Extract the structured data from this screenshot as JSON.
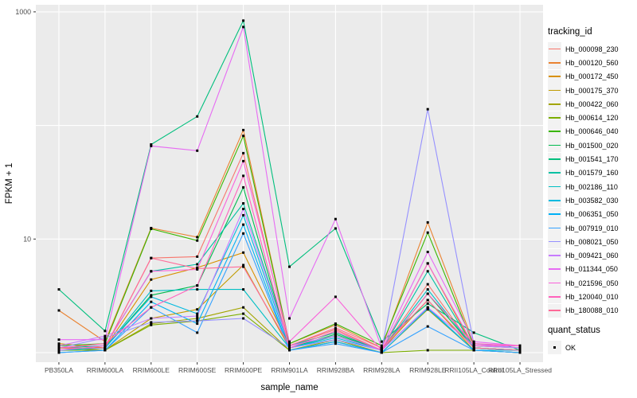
{
  "figure": {
    "y_axis": {
      "label": "FPKM + 1",
      "tick_labels": [
        "1000",
        "10"
      ]
    },
    "x_axis": {
      "label": "sample_name"
    },
    "legend": {
      "tracking_title": "tracking_id",
      "quant_title": "quant_status",
      "quant_items": [
        {
          "label": "OK",
          "symbol": "black-square-point"
        }
      ]
    },
    "colors": {
      "panel_background": "#EBEBEB",
      "gridline": "#FFFFFF",
      "tick_text": "#4D4D4D",
      "point": "#000000",
      "legend_key_background": "#F2F2F2"
    }
  },
  "chart_data": {
    "type": "line",
    "title": "",
    "xlabel": "sample_name",
    "ylabel": "FPKM + 1",
    "y_scale": "log10",
    "ylim": [
      1,
      1000
    ],
    "y_gridlines": [
      1,
      10,
      100,
      1000
    ],
    "y_labeled_breaks": [
      1000,
      10
    ],
    "grid": true,
    "legend_position": "right",
    "point_shape": "square",
    "categories": [
      "PB350LA",
      "RRIM600LA",
      "RRIM600LE",
      "RRIM600SE",
      "RRIM600PE",
      "RRIM901LA",
      "RRIM928BA",
      "RRIM928LA",
      "RRIM928LE",
      "RRII105LA_Control",
      "RRII105LA_Stressed"
    ],
    "series": [
      {
        "name": "Hb_000098_230",
        "color": "#F8766D",
        "values": [
          1.1,
          1.1,
          6.8,
          7.0,
          57,
          1.15,
          1.6,
          1.05,
          4.0,
          1.1,
          1.05
        ]
      },
      {
        "name": "Hb_000120_560",
        "color": "#EA8331",
        "values": [
          2.35,
          1.25,
          12.5,
          10.4,
          91,
          1.2,
          1.75,
          1.1,
          14.0,
          1.2,
          1.1
        ]
      },
      {
        "name": "Hb_000172_450",
        "color": "#D89000",
        "values": [
          1.2,
          1.1,
          4.4,
          5.6,
          7.6,
          1.15,
          1.5,
          1.05,
          6.1,
          1.1,
          1.05
        ]
      },
      {
        "name": "Hb_000175_370",
        "color": "#C09B00",
        "values": [
          1.1,
          1.05,
          2.0,
          2.4,
          5.9,
          1.1,
          1.4,
          1.05,
          2.9,
          1.05,
          1.05
        ]
      },
      {
        "name": "Hb_000422_060",
        "color": "#A3A500",
        "values": [
          1.05,
          1.05,
          1.8,
          2.0,
          2.5,
          1.05,
          1.3,
          1.0,
          2.4,
          1.05,
          1.0
        ]
      },
      {
        "name": "Hb_000614_120",
        "color": "#7CAE00",
        "values": [
          1.05,
          1.05,
          1.75,
          1.9,
          2.2,
          1.05,
          1.25,
          1.0,
          1.05,
          1.05,
          1.0
        ]
      },
      {
        "name": "Hb_000646_040",
        "color": "#39B600",
        "values": [
          1.15,
          1.2,
          12.3,
          9.7,
          81,
          1.2,
          1.8,
          1.15,
          11.4,
          1.15,
          1.1
        ]
      },
      {
        "name": "Hb_001500_020",
        "color": "#00BB4E",
        "values": [
          1.1,
          1.1,
          3.2,
          3.9,
          28.5,
          1.1,
          1.45,
          1.05,
          3.3,
          1.1,
          1.05
        ]
      },
      {
        "name": "Hb_001541_170",
        "color": "#00BF7D",
        "values": [
          3.6,
          1.55,
          68,
          120,
          838,
          5.7,
          12.4,
          1.25,
          2.7,
          1.5,
          1.05
        ]
      },
      {
        "name": "Hb_001579_160",
        "color": "#00C1A3",
        "values": [
          1.1,
          1.15,
          5.2,
          6.0,
          20.6,
          1.15,
          1.5,
          1.05,
          5.2,
          1.1,
          1.05
        ]
      },
      {
        "name": "Hb_002186_110",
        "color": "#00BFC4",
        "values": [
          1.05,
          1.1,
          3.5,
          3.6,
          3.6,
          1.1,
          1.4,
          1.05,
          3.6,
          1.1,
          1.05
        ]
      },
      {
        "name": "Hb_003582_030",
        "color": "#00BAE0",
        "values": [
          1.05,
          1.1,
          3.1,
          2.2,
          16.2,
          1.1,
          1.35,
          1.05,
          2.5,
          1.05,
          1.05
        ]
      },
      {
        "name": "Hb_006351_050",
        "color": "#00B0F6",
        "values": [
          1.0,
          1.05,
          2.8,
          1.8,
          13.4,
          1.05,
          1.25,
          1.0,
          2.45,
          1.05,
          1.0
        ]
      },
      {
        "name": "Hb_007919_010",
        "color": "#35A2FF",
        "values": [
          1.0,
          1.05,
          2.5,
          1.5,
          11.2,
          1.05,
          1.2,
          1.0,
          1.7,
          1.05,
          1.0
        ]
      },
      {
        "name": "Hb_008021_050",
        "color": "#9590FF",
        "values": [
          1.1,
          1.35,
          1.85,
          1.9,
          2.0,
          1.1,
          1.3,
          1.05,
          139,
          1.2,
          1.1
        ]
      },
      {
        "name": "Hb_009421_060",
        "color": "#C77CFF",
        "values": [
          1.15,
          1.4,
          2.0,
          2.1,
          18.4,
          1.15,
          1.4,
          1.05,
          2.5,
          1.15,
          1.1
        ]
      },
      {
        "name": "Hb_011344_050",
        "color": "#E76BF3",
        "values": [
          1.3,
          1.3,
          66,
          60,
          736,
          2.0,
          15.0,
          1.1,
          7.7,
          1.25,
          1.15
        ]
      },
      {
        "name": "Hb_021596_050",
        "color": "#FA62DB",
        "values": [
          1.05,
          1.15,
          5.2,
          5.4,
          48.5,
          1.25,
          3.1,
          1.05,
          6.1,
          1.15,
          1.15
        ]
      },
      {
        "name": "Hb_120040_010",
        "color": "#FF62BC",
        "values": [
          1.1,
          1.2,
          2.5,
          3.9,
          36,
          1.1,
          1.55,
          1.05,
          3.3,
          1.2,
          1.15
        ]
      },
      {
        "name": "Hb_180088_010",
        "color": "#FF6A98",
        "values": [
          1.1,
          1.1,
          6.8,
          5.5,
          5.7,
          1.15,
          1.65,
          1.1,
          2.9,
          1.1,
          1.05
        ]
      }
    ],
    "quant_status_all_points": "OK"
  }
}
